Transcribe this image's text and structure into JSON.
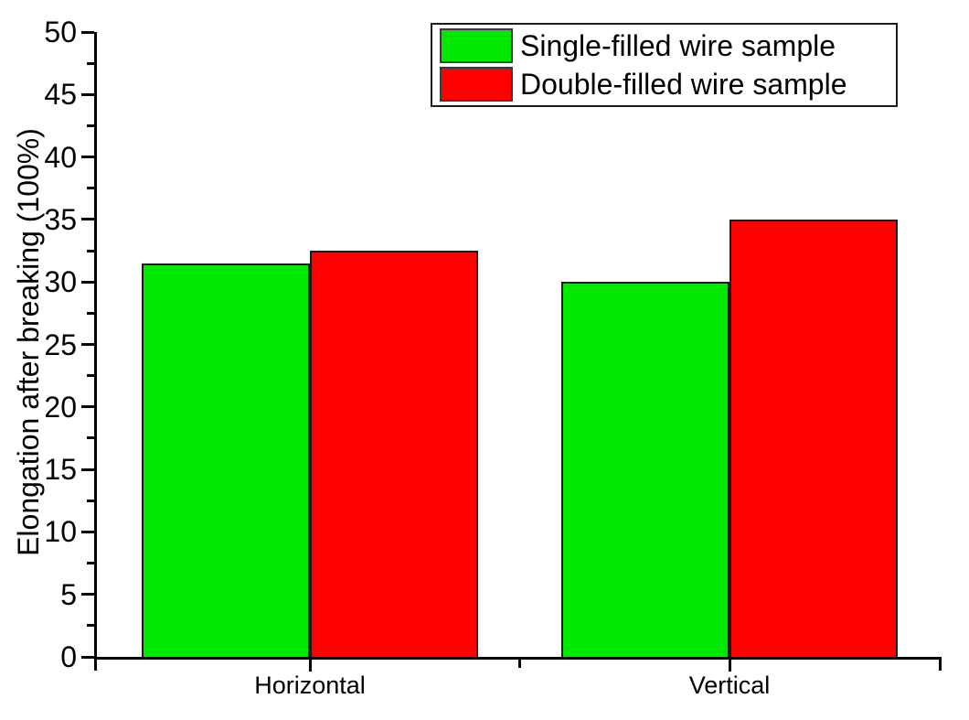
{
  "chart_data": {
    "type": "bar",
    "title": "",
    "categories": [
      "Horizontal",
      "Vertical"
    ],
    "series": [
      {
        "name": "Single-filled wire sample",
        "color": "#00e800",
        "values": [
          31.5,
          30
        ]
      },
      {
        "name": "Double-filled wire sample",
        "color": "#ff0000",
        "values": [
          32.5,
          35
        ]
      }
    ],
    "xlabel": "",
    "ylabel": "Elongation after breaking (100%)",
    "ylim": [
      0,
      50
    ],
    "yticks": [
      0,
      5,
      10,
      15,
      20,
      25,
      30,
      35,
      40,
      45,
      50
    ],
    "y_minor_tick_step": 2.5,
    "grid": false,
    "legend_position": "top-right",
    "bar_edge_color": "#1a1a1a",
    "axis_color": "#000000",
    "background_color": "#ffffff"
  }
}
